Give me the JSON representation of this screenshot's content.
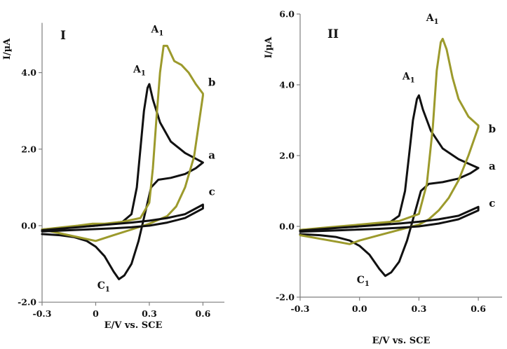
{
  "chart_data": [
    {
      "type": "line",
      "panel_label": "I",
      "xlabel": "E/V vs. SCE",
      "ylabel": "I/µA",
      "xlim": [
        -0.3,
        0.72
      ],
      "ylim": [
        -2.0,
        5.3
      ],
      "x_ticks": [
        "-0.3",
        "0",
        "0.3",
        "0.6"
      ],
      "x_tick_values": [
        -0.3,
        0.0,
        0.3,
        0.6
      ],
      "y_ticks": [
        "-2.0",
        "0.0",
        "2.0",
        "4.0"
      ],
      "y_tick_values": [
        -2.0,
        0.0,
        2.0,
        4.0
      ],
      "grid": false,
      "series": [
        {
          "name": "a",
          "color": "#111111",
          "x": [
            -0.3,
            0.0,
            0.15,
            0.2,
            0.23,
            0.25,
            0.27,
            0.29,
            0.3,
            0.32,
            0.36,
            0.42,
            0.5,
            0.58,
            0.6,
            0.56,
            0.5,
            0.42,
            0.35,
            0.31,
            0.28,
            0.24,
            0.2,
            0.16,
            0.13,
            0.1,
            0.05,
            0.0,
            -0.05,
            -0.12,
            -0.2,
            -0.3
          ],
          "y": [
            -0.1,
            0.0,
            0.1,
            0.3,
            1.0,
            2.0,
            3.0,
            3.6,
            3.7,
            3.3,
            2.7,
            2.2,
            1.9,
            1.7,
            1.65,
            1.5,
            1.35,
            1.25,
            1.2,
            1.0,
            0.4,
            -0.4,
            -1.0,
            -1.3,
            -1.4,
            -1.2,
            -0.8,
            -0.55,
            -0.4,
            -0.3,
            -0.25,
            -0.22
          ]
        },
        {
          "name": "b",
          "color": "#9c9a2c",
          "x": [
            -0.3,
            -0.2,
            -0.1,
            -0.02,
            0.05,
            0.15,
            0.25,
            0.3,
            0.32,
            0.34,
            0.36,
            0.38,
            0.4,
            0.44,
            0.48,
            0.52,
            0.56,
            0.6,
            0.6,
            0.55,
            0.5,
            0.45,
            0.4,
            0.35,
            0.3,
            0.2,
            0.1,
            0.0,
            -0.1,
            -0.2,
            -0.3
          ],
          "y": [
            -0.1,
            -0.05,
            0.0,
            0.05,
            0.05,
            0.1,
            0.2,
            0.6,
            1.5,
            2.8,
            4.0,
            4.7,
            4.7,
            4.3,
            4.2,
            4.0,
            3.7,
            3.45,
            3.4,
            1.8,
            1.0,
            0.5,
            0.25,
            0.15,
            0.05,
            -0.1,
            -0.25,
            -0.4,
            -0.3,
            -0.2,
            -0.1
          ]
        },
        {
          "name": "c",
          "color": "#111111",
          "x": [
            -0.3,
            -0.2,
            -0.1,
            0.0,
            0.1,
            0.2,
            0.3,
            0.4,
            0.5,
            0.6,
            0.6,
            0.5,
            0.4,
            0.3,
            0.2,
            0.1,
            0.0,
            -0.1,
            -0.2,
            -0.3
          ],
          "y": [
            -0.12,
            -0.08,
            -0.04,
            0.0,
            0.04,
            0.08,
            0.13,
            0.2,
            0.3,
            0.55,
            0.45,
            0.2,
            0.08,
            0.0,
            -0.04,
            -0.07,
            -0.09,
            -0.11,
            -0.13,
            -0.15
          ]
        }
      ],
      "annotations": [
        {
          "text": "a",
          "x": 0.65,
          "y": 1.75
        },
        {
          "text": "b",
          "x": 0.65,
          "y": 3.65
        },
        {
          "text": "c",
          "x": 0.65,
          "y": 0.8
        },
        {
          "peak": "A",
          "sub": "1",
          "x": 0.28,
          "y": 4.0
        },
        {
          "peak": "A",
          "sub": "1",
          "x": 0.38,
          "y": 5.05
        },
        {
          "peak": "C",
          "sub": "1",
          "x": 0.08,
          "y": -1.65
        }
      ]
    },
    {
      "type": "line",
      "panel_label": "II",
      "xlabel": "E/V vs. SCE",
      "ylabel": "I/µA",
      "xlim": [
        -0.3,
        0.72
      ],
      "ylim": [
        -2.0,
        6.0
      ],
      "x_ticks": [
        "-0.3",
        "0.0",
        "0.3",
        "0.6"
      ],
      "x_tick_values": [
        -0.3,
        0.0,
        0.3,
        0.6
      ],
      "y_ticks": [
        "-2.0",
        "0.0",
        "2.0",
        "4.0",
        "6.0"
      ],
      "y_tick_values": [
        -2.0,
        0.0,
        2.0,
        4.0,
        6.0
      ],
      "grid": false,
      "series": [
        {
          "name": "a",
          "color": "#111111",
          "x": [
            -0.3,
            0.0,
            0.15,
            0.2,
            0.23,
            0.25,
            0.27,
            0.29,
            0.3,
            0.32,
            0.36,
            0.42,
            0.5,
            0.58,
            0.6,
            0.56,
            0.5,
            0.42,
            0.35,
            0.31,
            0.28,
            0.24,
            0.2,
            0.16,
            0.13,
            0.1,
            0.05,
            0.0,
            -0.05,
            -0.12,
            -0.2,
            -0.3
          ],
          "y": [
            -0.1,
            0.0,
            0.1,
            0.3,
            1.0,
            2.0,
            3.0,
            3.6,
            3.7,
            3.3,
            2.7,
            2.2,
            1.9,
            1.7,
            1.65,
            1.5,
            1.35,
            1.25,
            1.2,
            1.0,
            0.4,
            -0.4,
            -1.0,
            -1.3,
            -1.4,
            -1.2,
            -0.8,
            -0.55,
            -0.4,
            -0.3,
            -0.25,
            -0.22
          ]
        },
        {
          "name": "b",
          "color": "#9c9a2c",
          "x": [
            -0.3,
            -0.2,
            -0.1,
            0.0,
            0.1,
            0.2,
            0.3,
            0.34,
            0.37,
            0.39,
            0.41,
            0.42,
            0.44,
            0.47,
            0.5,
            0.55,
            0.6,
            0.6,
            0.55,
            0.5,
            0.45,
            0.4,
            0.35,
            0.3,
            0.2,
            0.1,
            0.0,
            -0.05,
            -0.1,
            -0.2,
            -0.3
          ],
          "y": [
            -0.1,
            -0.05,
            0.0,
            0.05,
            0.1,
            0.15,
            0.35,
            1.2,
            2.8,
            4.4,
            5.2,
            5.3,
            5.0,
            4.2,
            3.6,
            3.1,
            2.85,
            2.8,
            2.0,
            1.3,
            0.8,
            0.45,
            0.2,
            0.05,
            -0.1,
            -0.25,
            -0.4,
            -0.5,
            -0.45,
            -0.35,
            -0.25
          ]
        },
        {
          "name": "c",
          "color": "#111111",
          "x": [
            -0.3,
            -0.2,
            -0.1,
            0.0,
            0.1,
            0.2,
            0.3,
            0.4,
            0.5,
            0.6,
            0.6,
            0.5,
            0.4,
            0.3,
            0.2,
            0.1,
            0.0,
            -0.1,
            -0.2,
            -0.3
          ],
          "y": [
            -0.12,
            -0.08,
            -0.04,
            0.0,
            0.04,
            0.08,
            0.13,
            0.2,
            0.3,
            0.55,
            0.45,
            0.2,
            0.08,
            0.0,
            -0.04,
            -0.07,
            -0.09,
            -0.11,
            -0.13,
            -0.15
          ]
        }
      ],
      "annotations": [
        {
          "text": "a",
          "x": 0.67,
          "y": 1.6
        },
        {
          "text": "b",
          "x": 0.67,
          "y": 2.65
        },
        {
          "text": "c",
          "x": 0.67,
          "y": 0.55
        },
        {
          "peak": "A",
          "sub": "1",
          "x": 0.28,
          "y": 4.15
        },
        {
          "peak": "A",
          "sub": "1",
          "x": 0.4,
          "y": 5.8
        },
        {
          "peak": "C",
          "sub": "1",
          "x": 0.05,
          "y": -1.6
        }
      ]
    }
  ]
}
